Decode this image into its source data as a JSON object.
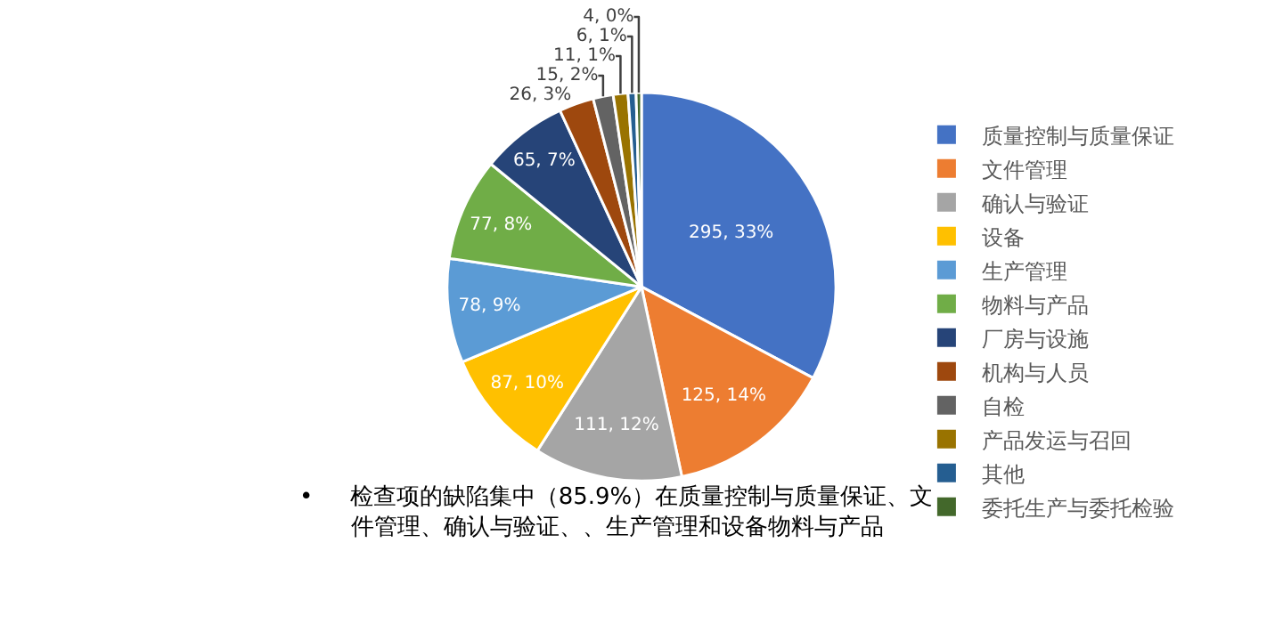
{
  "chart_data": {
    "type": "pie",
    "categories": [
      "质量控制与质量保证",
      "文件管理",
      "确认与验证",
      "设备",
      "生产管理",
      "物料与产品",
      "厂房与设施",
      "机构与人员",
      "自检",
      "产品发运与召回",
      "其他",
      "委托生产与委托检验"
    ],
    "values": [
      295,
      125,
      111,
      87,
      78,
      77,
      65,
      26,
      15,
      11,
      6,
      4
    ],
    "value_labels": [
      "295, 33%",
      "125, 14%",
      "111, 12%",
      "87, 10%",
      "78, 9%",
      "77, 8%",
      "65, 7%",
      "26, 3%",
      "15, 2%",
      "11, 1%",
      "6, 1%",
      "4, 0%"
    ],
    "colors": [
      "#4472c4",
      "#ed7d31",
      "#a5a5a5",
      "#ffc000",
      "#5b9bd5",
      "#70ad47",
      "#264478",
      "#9e480e",
      "#636363",
      "#997300",
      "#255e91",
      "#43682b"
    ],
    "legend": "right",
    "annotations": [
      "• 检查项的缺陷集中（85.9%）在质量控制与质量保证、文件管理、确认与验证、、生产管理和设备物料与产品"
    ]
  }
}
